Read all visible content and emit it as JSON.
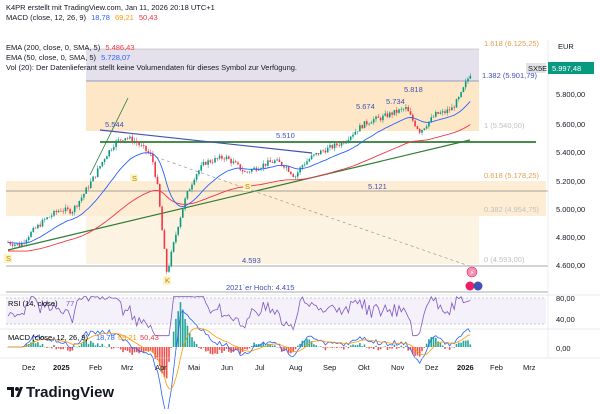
{
  "header": {
    "credit": "K4PR erstellt mit TradingView.com, Jan 11, 2026 20:18 UTC+1",
    "macd_top": {
      "label": "MACD (close, 12, 26, 9)",
      "v1": "18,78",
      "v2": "69,21",
      "v3": "50,43"
    },
    "ema200": {
      "label": "EMA (200, close, 0, SMA, 5)",
      "value": "5.486,43"
    },
    "ema50": {
      "label": "EMA (50, close, 0, SMA, 5)",
      "value": "5.728,07"
    },
    "volume_note": "Vol (20): Der Datenlieferant stellt keine Volumendaten für dieses Symbol zur Verfügung."
  },
  "price_axis": {
    "currency": "EUR",
    "ticks": [
      "5.800,00",
      "5.600,00",
      "5.400,00",
      "5.200,00",
      "5.000,00",
      "4.800,00",
      "4.600,00"
    ],
    "symbol_badge": "SX5E",
    "last_price": "5.997,48"
  },
  "fib_levels": [
    {
      "label": "1.618 (6.125,25)",
      "value": 6125.25
    },
    {
      "label": "1.382 (5.901,79)",
      "value": 5901.79
    },
    {
      "label": "1 (5.540,00)",
      "value": 5540.0
    },
    {
      "label": "0.618 (5.178,25)",
      "value": 5178.25
    },
    {
      "label": "0.382 (4.954,75)",
      "value": 4954.75
    },
    {
      "label": "0 (4.593,00)",
      "value": 4593.0
    }
  ],
  "annotations": {
    "level_5544": "5.544",
    "level_5510": "5.510",
    "level_5674": "5.674",
    "level_5734": "5.734",
    "level_5818": "5.818",
    "level_5121": "5.121",
    "level_4593": "4.593",
    "low_2021": "2021`er Hoch: 4.415",
    "marker_s": "S",
    "marker_k": "K"
  },
  "rsi": {
    "label": "RSI (14, close)",
    "value": "77",
    "ticks": [
      "80,00",
      "40,00"
    ]
  },
  "macd": {
    "label": "MACD (close, 12, 26, 9)",
    "v1": "18,78",
    "v2": "69,21",
    "v3": "50,43",
    "zero_tick": "0,00"
  },
  "time_axis": [
    "Dez",
    "2025",
    "Feb",
    "Mrz",
    "Apr",
    "Mai",
    "Jun",
    "Jul",
    "Aug",
    "Sep",
    "Okt",
    "Nov",
    "Dez",
    "2026",
    "Feb",
    "Mrz"
  ],
  "colors": {
    "up": "#089981",
    "down": "#f23645",
    "ema200": "#f23645",
    "ema50": "#2962ff",
    "fib_band": "#fbe4c2",
    "fib_top": "#d9d4e6",
    "trend_green": "#1e7d32",
    "trend_blue": "#3f51b5",
    "support": "#2e7d32",
    "fib_text": "#e0a050",
    "rsi_line": "#7e57c2"
  },
  "brand": "TradingView",
  "chart_data": {
    "type": "candlestick",
    "title": "",
    "ylim": [
      4415,
      6200
    ],
    "ema200_end": 5486.43,
    "ema50_end": 5728.07,
    "last_close": 5997.48,
    "key_levels": [
      5544,
      5510,
      5674,
      5734,
      5818,
      5121,
      4593,
      4415
    ]
  }
}
